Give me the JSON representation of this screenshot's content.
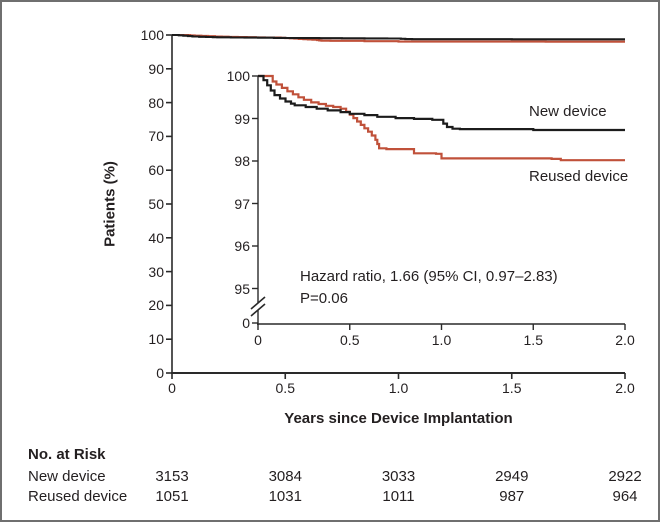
{
  "figure": {
    "background": "#ffffff",
    "border_color": "#6f6f6f",
    "axis_color": "#2a2a2a"
  },
  "chart_data": {
    "type": "line",
    "title": "",
    "xlabel": "Years since Device Implantation",
    "ylabel": "Patients (%)",
    "xlim": [
      0,
      2.0
    ],
    "main_ylim": [
      0,
      100
    ],
    "inset_ylim": [
      95,
      100
    ],
    "grid": false,
    "x_ticks": [
      "0",
      "0.5",
      "1.0",
      "1.5",
      "2.0"
    ],
    "main_y_ticks": [
      "100",
      "90",
      "80",
      "70",
      "60",
      "50",
      "40",
      "30",
      "20",
      "10",
      "0"
    ],
    "inset_y_ticks": [
      "100",
      "99",
      "98",
      "97",
      "96",
      "95"
    ],
    "inset_axis_break_label": "0",
    "annotation": {
      "line1": "Hazard ratio, 1.66 (95% CI, 0.97–2.83)",
      "line2": "P=0.06"
    },
    "series": [
      {
        "name": "New device",
        "color": "#1c1c1c",
        "points": [
          [
            0,
            100
          ],
          [
            0.03,
            99.9
          ],
          [
            0.05,
            99.78
          ],
          [
            0.07,
            99.66
          ],
          [
            0.09,
            99.55
          ],
          [
            0.12,
            99.47
          ],
          [
            0.15,
            99.4
          ],
          [
            0.18,
            99.35
          ],
          [
            0.2,
            99.31
          ],
          [
            0.26,
            99.27
          ],
          [
            0.32,
            99.23
          ],
          [
            0.38,
            99.19
          ],
          [
            0.45,
            99.15
          ],
          [
            0.5,
            99.11
          ],
          [
            0.58,
            99.08
          ],
          [
            0.65,
            99.04
          ],
          [
            0.75,
            99.01
          ],
          [
            0.85,
            98.99
          ],
          [
            0.95,
            98.97
          ],
          [
            1.01,
            98.88
          ],
          [
            1.03,
            98.8
          ],
          [
            1.06,
            98.76
          ],
          [
            1.1,
            98.75
          ],
          [
            1.5,
            98.73
          ],
          [
            2,
            98.73
          ]
        ]
      },
      {
        "name": "Reused device",
        "color": "#c0513a",
        "points": [
          [
            0,
            100
          ],
          [
            0.065,
            100
          ],
          [
            0.08,
            99.87
          ],
          [
            0.1,
            99.8
          ],
          [
            0.13,
            99.72
          ],
          [
            0.16,
            99.64
          ],
          [
            0.19,
            99.57
          ],
          [
            0.22,
            99.5
          ],
          [
            0.25,
            99.44
          ],
          [
            0.29,
            99.38
          ],
          [
            0.33,
            99.34
          ],
          [
            0.37,
            99.3
          ],
          [
            0.41,
            99.27
          ],
          [
            0.45,
            99.23
          ],
          [
            0.48,
            99.16
          ],
          [
            0.5,
            99.09
          ],
          [
            0.52,
            99.01
          ],
          [
            0.54,
            98.93
          ],
          [
            0.56,
            98.85
          ],
          [
            0.58,
            98.77
          ],
          [
            0.6,
            98.69
          ],
          [
            0.62,
            98.6
          ],
          [
            0.64,
            98.5
          ],
          [
            0.65,
            98.4
          ],
          [
            0.66,
            98.3
          ],
          [
            0.7,
            98.28
          ],
          [
            0.83,
            98.28
          ],
          [
            0.85,
            98.18
          ],
          [
            0.97,
            98.17
          ],
          [
            1,
            98.06
          ],
          [
            1.6,
            98.05
          ],
          [
            1.65,
            98.02
          ],
          [
            2,
            98.02
          ]
        ]
      }
    ]
  },
  "risk_table": {
    "title": "No. at Risk",
    "rows": [
      {
        "label": "New device",
        "values": [
          "3153",
          "3084",
          "3033",
          "2949",
          "2922"
        ]
      },
      {
        "label": "Reused device",
        "values": [
          "1051",
          "1031",
          "1011",
          "987",
          "964"
        ]
      }
    ]
  }
}
